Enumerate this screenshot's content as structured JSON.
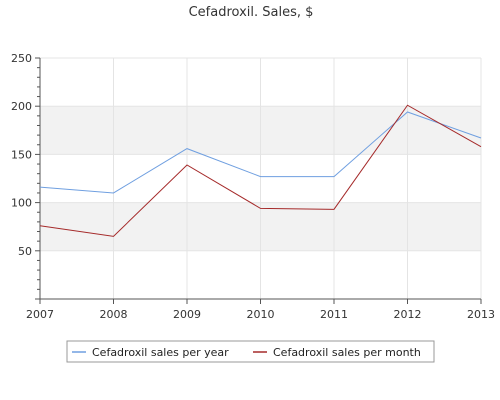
{
  "chart_data": {
    "type": "line",
    "title": "Cefadroxil. Sales, $",
    "xlabel": "",
    "ylabel": "",
    "x": [
      "2007",
      "2008",
      "2009",
      "2010",
      "2011",
      "2012",
      "2013"
    ],
    "xlim": [
      2007,
      2013
    ],
    "ylim": [
      0,
      250
    ],
    "yticks": [
      50,
      100,
      150,
      200,
      250
    ],
    "grid": "horizontal bands",
    "legend_position": "bottom-center",
    "series": [
      {
        "name": "Cefadroxil sales per year",
        "color": "#6f9fe0",
        "values": [
          116,
          110,
          156,
          127,
          127,
          194,
          167
        ]
      },
      {
        "name": "Cefadroxil sales per month",
        "color": "#a52a2a",
        "values": [
          76,
          65,
          139,
          94,
          93,
          201,
          158
        ]
      }
    ],
    "colors": {
      "band": "#f2f2f2",
      "grid": "#e4e4e4",
      "axis": "#555555"
    }
  }
}
